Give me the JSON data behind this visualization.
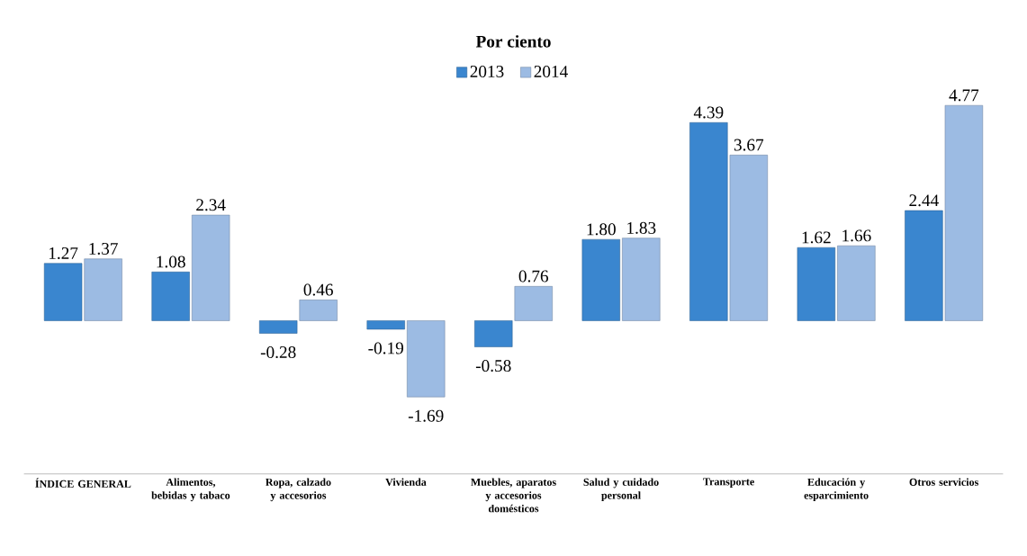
{
  "chart_data": {
    "type": "bar",
    "title": "Por ciento",
    "categories": [
      "ÍNDICE GENERAL",
      "Alimentos, bebidas y tabaco",
      "Ropa, calzado y accesorios",
      "Vivienda",
      "Muebles, aparatos y accesorios domésticos",
      "Salud y cuidado personal",
      "Transporte",
      "Educación y esparcimiento",
      "Otros servicios"
    ],
    "series": [
      {
        "name": "2013",
        "color": "#3a86cf",
        "values": [
          1.27,
          1.08,
          -0.28,
          -0.19,
          -0.58,
          1.8,
          4.39,
          1.62,
          2.44
        ],
        "value_labels": [
          "1.27",
          "1.08",
          "-0.28",
          "-0.19",
          "-0.58",
          "1.80",
          "4.39",
          "1.62",
          "2.44"
        ]
      },
      {
        "name": "2014",
        "color": "#9cbbe3",
        "values": [
          1.37,
          2.34,
          0.46,
          -1.69,
          0.76,
          1.83,
          3.67,
          1.66,
          4.77
        ],
        "value_labels": [
          "1.37",
          "2.34",
          "0.46",
          "-1.69",
          "0.76",
          "1.83",
          "3.67",
          "1.66",
          "4.77"
        ]
      }
    ],
    "legend": "top"
  }
}
